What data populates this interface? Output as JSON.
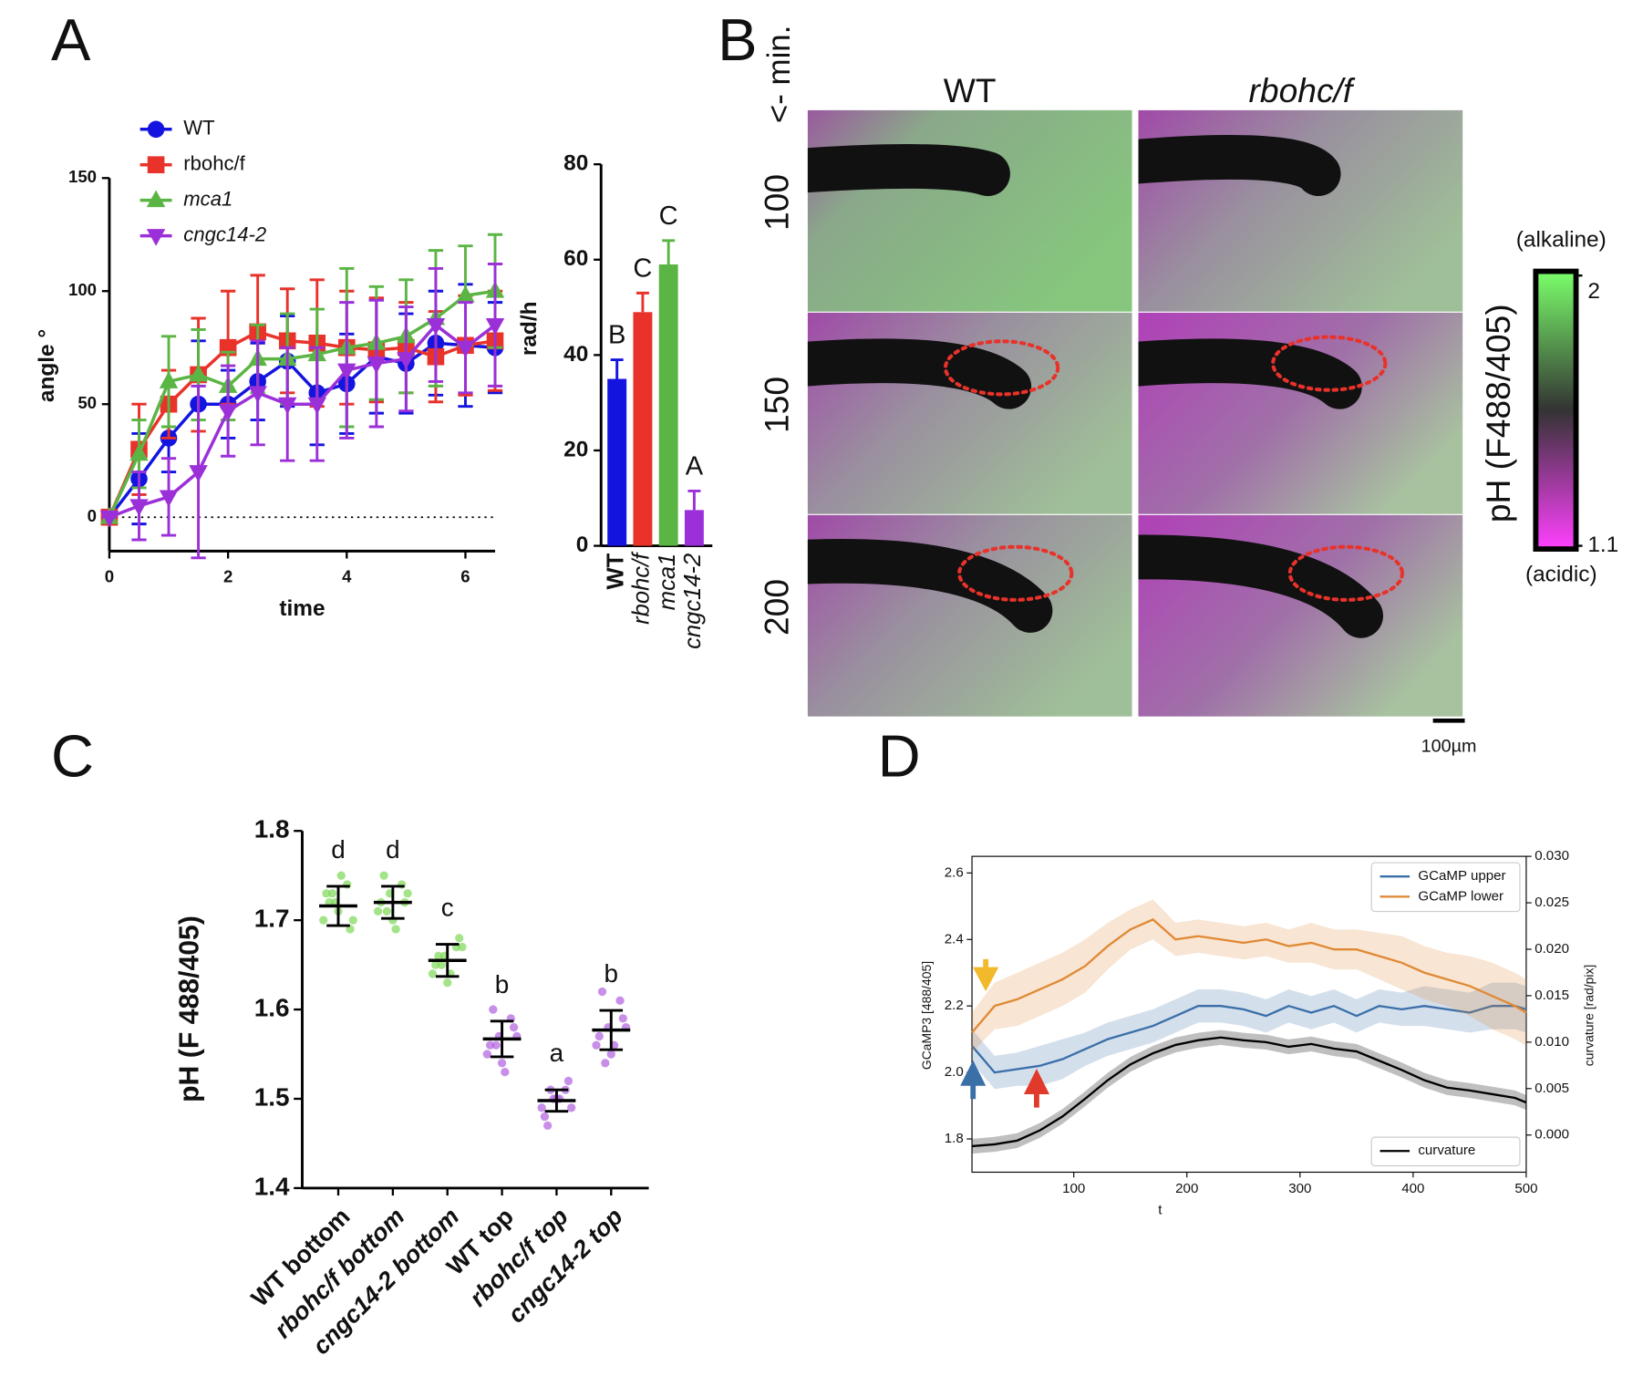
{
  "chart_data": [
    {
      "type": "line",
      "panel": "A",
      "x_label": "time",
      "y_label": "angle °",
      "x": [
        0,
        0.5,
        1,
        1.5,
        2,
        2.5,
        3,
        3.5,
        4,
        4.5,
        5,
        5.5,
        6,
        6.5
      ],
      "xlim": [
        0,
        6.5
      ],
      "xticks": [
        0,
        2,
        4,
        6
      ],
      "ylim": [
        -15,
        150
      ],
      "yticks": [
        0,
        50,
        100,
        150
      ],
      "reference_line": 0,
      "legend": "upper left",
      "series": [
        {
          "name": "WT",
          "color": "#1414e0",
          "marker": "circle",
          "values": [
            0,
            17,
            35,
            50,
            50,
            60,
            69,
            55,
            59,
            71,
            68,
            77,
            76,
            75
          ],
          "errors": [
            0,
            20,
            15,
            28,
            15,
            17,
            20,
            23,
            22,
            25,
            22,
            23,
            27,
            20
          ]
        },
        {
          "name": "rbohc/f",
          "color": "#e8322a",
          "marker": "square",
          "values": [
            0,
            30,
            50,
            63,
            75,
            82,
            78,
            77,
            75,
            74,
            75,
            71,
            76,
            78
          ],
          "errors": [
            0,
            20,
            15,
            25,
            25,
            25,
            23,
            28,
            25,
            23,
            20,
            20,
            22,
            22
          ]
        },
        {
          "name": "mca1",
          "color": "#5bb544",
          "marker": "triangle-up",
          "values": [
            0,
            28,
            60,
            63,
            58,
            70,
            70,
            72,
            75,
            77,
            80,
            88,
            98,
            100
          ],
          "errors": [
            0,
            15,
            20,
            20,
            15,
            15,
            20,
            20,
            35,
            25,
            25,
            30,
            22,
            25
          ]
        },
        {
          "name": "cngc14-2",
          "color": "#9b30d9",
          "marker": "triangle-down",
          "values": [
            0,
            5,
            9,
            20,
            47,
            55,
            50,
            50,
            65,
            68,
            70,
            85,
            75,
            85
          ],
          "errors": [
            0,
            15,
            17,
            38,
            20,
            23,
            25,
            25,
            30,
            28,
            23,
            25,
            20,
            27
          ]
        }
      ]
    },
    {
      "type": "bar",
      "y_label": "rad/h",
      "categories": [
        "WT",
        "rbohc/f",
        "mca1",
        "cngc14-2"
      ],
      "values": [
        35,
        49,
        59,
        7.5
      ],
      "errors": [
        4,
        4,
        5,
        4
      ],
      "letters": [
        "B",
        "C",
        "C",
        "A"
      ],
      "colors": [
        "#1414e0",
        "#e8322a",
        "#5bb544",
        "#9b30d9"
      ],
      "ylim": [
        0,
        80
      ],
      "yticks": [
        0,
        20,
        40,
        60,
        80
      ]
    },
    {
      "type": "image",
      "panel": "B",
      "columns": [
        "WT",
        "rbohc/f"
      ],
      "rows": [
        100,
        150,
        200
      ],
      "row_label": "<- min.",
      "colorbar": {
        "label": "pH (F488/405)",
        "max_label": "(alkaline)",
        "min_label": "(acidic)",
        "clim": [
          1.1,
          2
        ],
        "ticks": [
          2,
          1.1
        ]
      },
      "scale_bar": "100µm"
    },
    {
      "type": "dot",
      "panel": "C",
      "y_label": "pH (F 488/405)",
      "categories": [
        "WT bottom",
        "rbohc/f bottom",
        "cngc14-2 bottom",
        "WT top",
        "rbohc/f top",
        "cngc14-2 top"
      ],
      "means": [
        1.716,
        1.72,
        1.655,
        1.567,
        1.498,
        1.577
      ],
      "errors": [
        0.022,
        0.018,
        0.018,
        0.02,
        0.012,
        0.022
      ],
      "letters": [
        "d",
        "d",
        "c",
        "b",
        "a",
        "b"
      ],
      "colors": [
        "#7ed957",
        "#7ed957",
        "#7ed957",
        "#b060e0",
        "#b060e0",
        "#b060e0"
      ],
      "points": [
        [
          1.7,
          1.72,
          1.74,
          1.73,
          1.71,
          1.69,
          1.72,
          1.75,
          1.7,
          1.73
        ],
        [
          1.71,
          1.73,
          1.74,
          1.72,
          1.7,
          1.72,
          1.75,
          1.69,
          1.73,
          1.71
        ],
        [
          1.64,
          1.66,
          1.67,
          1.65,
          1.63,
          1.68,
          1.66,
          1.64,
          1.67,
          1.65
        ],
        [
          1.55,
          1.57,
          1.59,
          1.56,
          1.54,
          1.58,
          1.6,
          1.53,
          1.57,
          1.56
        ],
        [
          1.49,
          1.5,
          1.51,
          1.48,
          1.5,
          1.52,
          1.47,
          1.5,
          1.49,
          1.51
        ],
        [
          1.56,
          1.58,
          1.61,
          1.57,
          1.55,
          1.59,
          1.62,
          1.56,
          1.58,
          1.54
        ]
      ],
      "ylim": [
        1.4,
        1.8
      ],
      "yticks": [
        1.4,
        1.5,
        1.6,
        1.7,
        1.8
      ]
    },
    {
      "type": "line",
      "panel": "D",
      "x_label": "t",
      "y_label": "GCaMP3 [488/405]",
      "y2_label": "curvature [rad/pix]",
      "x": [
        10,
        30,
        50,
        70,
        90,
        110,
        130,
        150,
        170,
        190,
        210,
        230,
        250,
        270,
        290,
        310,
        330,
        350,
        370,
        390,
        410,
        430,
        450,
        470,
        490,
        500
      ],
      "xlim": [
        10,
        500
      ],
      "xticks": [
        100,
        200,
        300,
        400,
        500
      ],
      "ylim": [
        1.7,
        2.65
      ],
      "yticks": [
        1.8,
        {
          "value": 2.0,
          "label": "2.0"
        },
        2.2,
        2.4,
        2.6
      ],
      "y2lim": [
        -0.004,
        0.03
      ],
      "y2ticks": [
        {
          "value": 0,
          "label": "0.000"
        },
        {
          "value": 0.005,
          "label": "0.005"
        },
        {
          "value": 0.01,
          "label": "0.010"
        },
        {
          "value": 0.015,
          "label": "0.015"
        },
        {
          "value": 0.02,
          "label": "0.020"
        },
        {
          "value": 0.025,
          "label": "0.025"
        },
        {
          "value": 0.03,
          "label": "0.030"
        }
      ],
      "legend": "upper right",
      "y2_legend": "lower right",
      "series": [
        {
          "name": "GCaMP upper",
          "color": "#3a6fa8",
          "values": [
            2.08,
            2.0,
            2.01,
            2.02,
            2.04,
            2.07,
            2.1,
            2.12,
            2.14,
            2.17,
            2.2,
            2.2,
            2.19,
            2.17,
            2.2,
            2.18,
            2.2,
            2.17,
            2.2,
            2.19,
            2.2,
            2.19,
            2.18,
            2.2,
            2.2,
            2.19
          ],
          "errors": [
            0.05,
            0.05,
            0.05,
            0.06,
            0.06,
            0.05,
            0.05,
            0.05,
            0.05,
            0.05,
            0.05,
            0.05,
            0.05,
            0.05,
            0.05,
            0.05,
            0.05,
            0.05,
            0.05,
            0.05,
            0.06,
            0.06,
            0.06,
            0.07,
            0.07,
            0.07
          ]
        },
        {
          "name": "GCaMP lower",
          "color": "#e08a35",
          "values": [
            2.12,
            2.2,
            2.22,
            2.25,
            2.28,
            2.32,
            2.38,
            2.43,
            2.46,
            2.4,
            2.41,
            2.4,
            2.39,
            2.4,
            2.38,
            2.39,
            2.37,
            2.37,
            2.35,
            2.33,
            2.3,
            2.28,
            2.26,
            2.23,
            2.2,
            2.18
          ],
          "errors": [
            0.06,
            0.07,
            0.08,
            0.08,
            0.08,
            0.08,
            0.07,
            0.06,
            0.06,
            0.05,
            0.05,
            0.05,
            0.05,
            0.05,
            0.05,
            0.06,
            0.06,
            0.06,
            0.07,
            0.08,
            0.08,
            0.08,
            0.09,
            0.1,
            0.1,
            0.1
          ]
        },
        {
          "name": "curvature",
          "color": "#000000",
          "axis": "y2",
          "values": [
            -0.0012,
            -0.001,
            -0.0006,
            0.0005,
            0.002,
            0.0039,
            0.0059,
            0.0076,
            0.0088,
            0.0097,
            0.0102,
            0.0105,
            0.0102,
            0.01,
            0.0095,
            0.0098,
            0.0093,
            0.009,
            0.008,
            0.007,
            0.0059,
            0.0051,
            0.0048,
            0.0044,
            0.004,
            0.0035
          ],
          "errors": [
            0.0008,
            0.0008,
            0.0008,
            0.0008,
            0.0008,
            0.0008,
            0.0008,
            0.0008,
            0.0008,
            0.0008,
            0.0008,
            0.0008,
            0.0008,
            0.0008,
            0.0008,
            0.0008,
            0.0008,
            0.0008,
            0.0008,
            0.0008,
            0.0008,
            0.0008,
            0.0008,
            0.0008,
            0.0008,
            0.0008
          ]
        }
      ]
    }
  ]
}
